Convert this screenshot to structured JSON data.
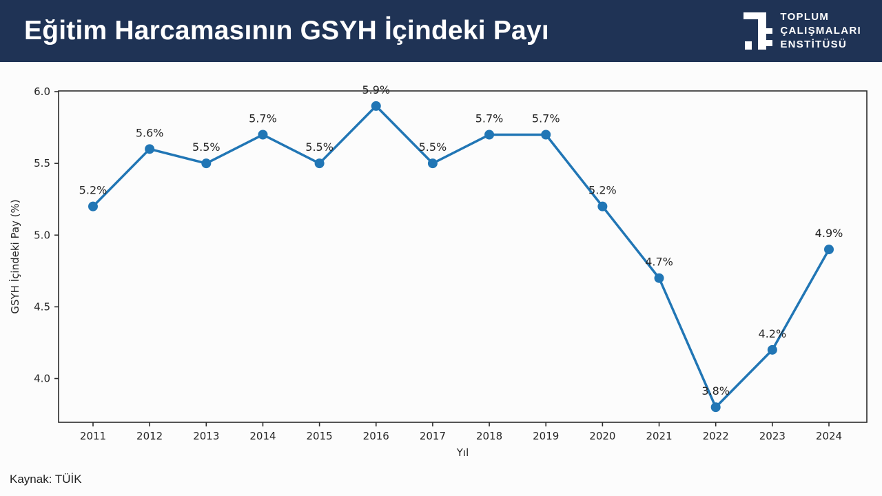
{
  "header": {
    "title": "Eğitim Harcamasının GSYH İçindeki Payı",
    "logo": {
      "lines": [
        "TOPLUM",
        "ÇALIŞMALARI",
        "ENSTİTÜSÜ"
      ]
    }
  },
  "footer": {
    "source": "Kaynak: TÜİK"
  },
  "colors": {
    "header_bg": "#1f3355",
    "line": "#2176b5",
    "axis": "#2a2a2a",
    "tick_label": "#262626",
    "point_label": "#262626"
  },
  "chart_data": {
    "type": "line",
    "title": "Eğitim Harcamasının GSYH İçindeki Payı",
    "xlabel": "Yıl",
    "ylabel": "GSYH İçindeki Pay (%)",
    "categories": [
      "2011",
      "2012",
      "2013",
      "2014",
      "2015",
      "2016",
      "2017",
      "2018",
      "2019",
      "2020",
      "2021",
      "2022",
      "2023",
      "2024"
    ],
    "values": [
      5.2,
      5.6,
      5.5,
      5.7,
      5.5,
      5.9,
      5.5,
      5.7,
      5.7,
      5.2,
      4.7,
      3.8,
      4.2,
      4.9
    ],
    "point_labels": [
      "5.2%",
      "5.6%",
      "5.5%",
      "5.7%",
      "5.5%",
      "5.9%",
      "5.5%",
      "5.7%",
      "5.7%",
      "5.2%",
      "4.7%",
      "3.8%",
      "4.2%",
      "4.9%"
    ],
    "y_ticks": [
      4.0,
      4.5,
      5.0,
      5.5,
      6.0
    ],
    "y_tick_labels": [
      "4.0",
      "4.5",
      "5.0",
      "5.5",
      "6.0"
    ],
    "ylim": [
      3.695,
      6.005
    ],
    "grid": false,
    "legend": null,
    "marker": "circle"
  }
}
